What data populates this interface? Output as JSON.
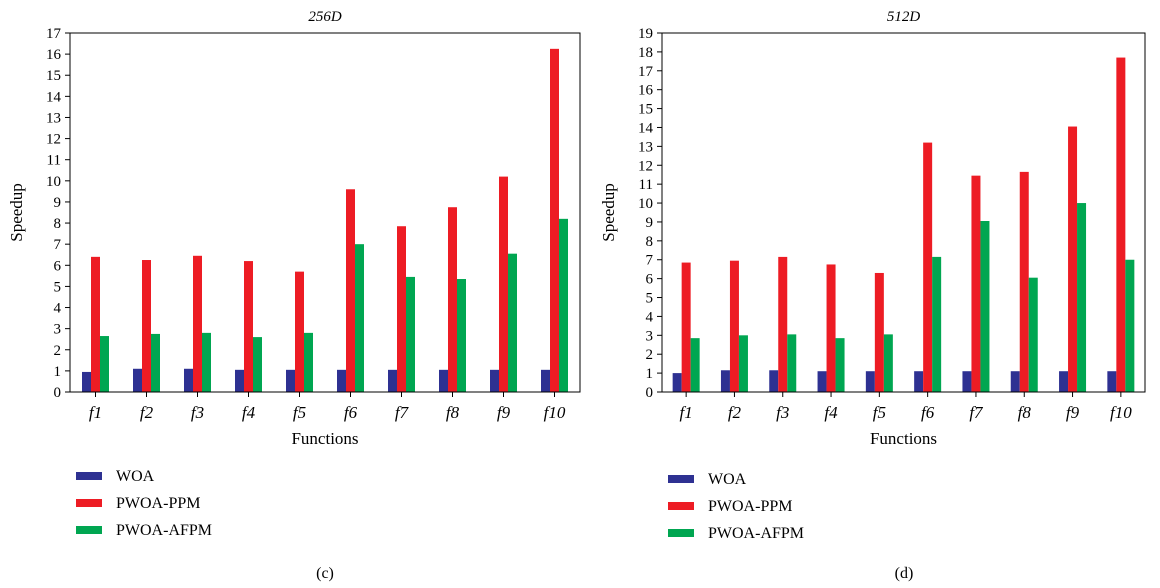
{
  "chart_data": [
    {
      "type": "bar",
      "panel_label": "(c)",
      "title": "256D",
      "xlabel": "Functions",
      "ylabel": "Speedup",
      "ylim": [
        0,
        17
      ],
      "yticks": [
        "0",
        "1",
        "2",
        "3",
        "4",
        "5",
        "6",
        "7",
        "8",
        "9",
        "10",
        "11",
        "12",
        "13",
        "14",
        "15",
        "16",
        "17"
      ],
      "categories": [
        "f1",
        "f2",
        "f3",
        "f4",
        "f5",
        "f6",
        "f7",
        "f8",
        "f9",
        "f10"
      ],
      "legend_position": "bottom-left",
      "series": [
        {
          "name": "WOA",
          "color": "#2e3192",
          "values": [
            0.95,
            1.1,
            1.1,
            1.05,
            1.05,
            1.05,
            1.05,
            1.05,
            1.05,
            1.05
          ]
        },
        {
          "name": "PWOA-PPM",
          "color": "#ed1c24",
          "values": [
            6.4,
            6.25,
            6.45,
            6.2,
            5.7,
            9.6,
            7.85,
            8.75,
            10.2,
            16.25
          ]
        },
        {
          "name": "PWOA-AFPM",
          "color": "#00a651",
          "values": [
            2.65,
            2.75,
            2.8,
            2.6,
            2.8,
            7.0,
            5.45,
            5.35,
            6.55,
            8.2
          ]
        }
      ]
    },
    {
      "type": "bar",
      "panel_label": "(d)",
      "title": "512D",
      "xlabel": "Functions",
      "ylabel": "Speedup",
      "ylim": [
        0,
        19
      ],
      "yticks": [
        "0",
        "1",
        "2",
        "3",
        "4",
        "5",
        "6",
        "7",
        "8",
        "9",
        "10",
        "11",
        "12",
        "13",
        "14",
        "15",
        "16",
        "17",
        "18",
        "19"
      ],
      "categories": [
        "f1",
        "f2",
        "f3",
        "f4",
        "f5",
        "f6",
        "f7",
        "f8",
        "f9",
        "f10"
      ],
      "legend_position": "bottom-left",
      "series": [
        {
          "name": "WOA",
          "color": "#2e3192",
          "values": [
            1.0,
            1.15,
            1.15,
            1.1,
            1.1,
            1.1,
            1.1,
            1.1,
            1.1,
            1.1
          ]
        },
        {
          "name": "PWOA-PPM",
          "color": "#ed1c24",
          "values": [
            6.85,
            6.95,
            7.15,
            6.75,
            6.3,
            13.2,
            11.45,
            11.65,
            14.05,
            17.7
          ]
        },
        {
          "name": "PWOA-AFPM",
          "color": "#00a651",
          "values": [
            2.85,
            3.0,
            3.05,
            2.85,
            3.05,
            7.15,
            9.05,
            6.05,
            10.0,
            7.0
          ]
        }
      ]
    }
  ]
}
